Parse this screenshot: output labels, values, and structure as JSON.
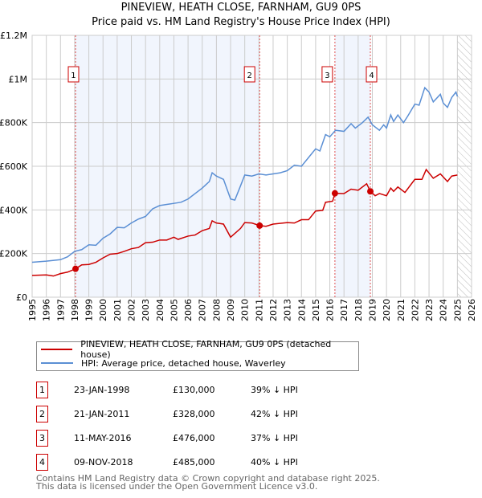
{
  "chart_data": {
    "type": "line",
    "title": "PINEVIEW, HEATH CLOSE, FARNHAM, GU9 0PS",
    "subtitle": "Price paid vs. HM Land Registry's House Price Index (HPI)",
    "xlim": [
      1995,
      2026
    ],
    "ylim": [
      0,
      1200000
    ],
    "x_ticks": [
      "1995",
      "1996",
      "1997",
      "1998",
      "1999",
      "2000",
      "2001",
      "2002",
      "2003",
      "2004",
      "2005",
      "2006",
      "2007",
      "2008",
      "2009",
      "2010",
      "2011",
      "2012",
      "2013",
      "2014",
      "2015",
      "2016",
      "2017",
      "2018",
      "2019",
      "2020",
      "2021",
      "2022",
      "2023",
      "2024",
      "2025",
      "2026"
    ],
    "y_ticks": [
      {
        "v": 0,
        "label": "£0"
      },
      {
        "v": 200000,
        "label": "£200K"
      },
      {
        "v": 400000,
        "label": "£400K"
      },
      {
        "v": 600000,
        "label": "£600K"
      },
      {
        "v": 800000,
        "label": "£800K"
      },
      {
        "v": 1000000,
        "label": "£1M"
      },
      {
        "v": 1200000,
        "label": "£1.2M"
      }
    ],
    "grid": true,
    "shaded_ranges": [
      [
        1998.06,
        2011.05
      ],
      [
        2016.36,
        2018.86
      ]
    ],
    "hatched_from": 2025.0,
    "series": [
      {
        "name": "PINEVIEW, HEATH CLOSE, FARNHAM, GU9 0PS (detached house)",
        "color": "#cc0000",
        "x": [
          1995,
          1996,
          1996.5,
          1997,
          1997.5,
          1998.06,
          1998.5,
          1999,
          1999.5,
          2000,
          2000.5,
          2001,
          2001.5,
          2002,
          2002.5,
          2003,
          2003.5,
          2004,
          2004.5,
          2005,
          2005.3,
          2006,
          2006.5,
          2007,
          2007.5,
          2007.7,
          2008,
          2008.5,
          2009,
          2009.7,
          2010,
          2010.5,
          2011.05,
          2011.5,
          2012,
          2013,
          2013.5,
          2014,
          2014.5,
          2015,
          2015.5,
          2015.7,
          2016.2,
          2016.36,
          2017,
          2017.5,
          2018,
          2018.6,
          2018.86,
          2019.2,
          2019.5,
          2020,
          2020.3,
          2020.5,
          2020.8,
          2021.3,
          2022,
          2022.5,
          2022.8,
          2023.3,
          2023.8,
          2024.3,
          2024.6,
          2025
        ],
        "y": [
          100000,
          102000,
          97000,
          108000,
          115000,
          130000,
          148000,
          150000,
          160000,
          180000,
          197000,
          200000,
          210000,
          222000,
          228000,
          250000,
          252000,
          262000,
          262000,
          275000,
          265000,
          280000,
          285000,
          305000,
          315000,
          350000,
          340000,
          335000,
          275000,
          315000,
          342000,
          340000,
          328000,
          325000,
          335000,
          342000,
          340000,
          355000,
          355000,
          395000,
          398000,
          435000,
          440000,
          476000,
          475000,
          495000,
          490000,
          520000,
          485000,
          465000,
          475000,
          465000,
          500000,
          485000,
          505000,
          480000,
          540000,
          540000,
          585000,
          545000,
          565000,
          530000,
          555000,
          560000
        ]
      },
      {
        "name": "HPI: Average price, detached house, Waverley",
        "color": "#5b8fd4",
        "x": [
          1995,
          1996,
          1997,
          1997.5,
          1998,
          1998.5,
          1999,
          1999.5,
          2000,
          2000.5,
          2001,
          2001.5,
          2002,
          2002.5,
          2003,
          2003.5,
          2004,
          2004.5,
          2005,
          2005.5,
          2006,
          2006.5,
          2007,
          2007.5,
          2007.7,
          2008,
          2008.5,
          2009,
          2009.3,
          2009.7,
          2010,
          2010.5,
          2011,
          2011.5,
          2012,
          2012.5,
          2013,
          2013.5,
          2014,
          2014.5,
          2015,
          2015.3,
          2015.7,
          2016,
          2016.4,
          2017,
          2017.5,
          2017.8,
          2018.3,
          2018.7,
          2019,
          2019.5,
          2019.8,
          2020,
          2020.3,
          2020.5,
          2020.8,
          2021.2,
          2021.5,
          2022,
          2022.3,
          2022.7,
          2023,
          2023.3,
          2023.8,
          2024,
          2024.3,
          2024.6,
          2024.9,
          2025
        ],
        "y": [
          160000,
          165000,
          172000,
          185000,
          210000,
          218000,
          240000,
          238000,
          270000,
          290000,
          320000,
          318000,
          340000,
          358000,
          370000,
          405000,
          420000,
          425000,
          430000,
          435000,
          450000,
          475000,
          500000,
          530000,
          570000,
          555000,
          540000,
          450000,
          445000,
          510000,
          560000,
          555000,
          565000,
          560000,
          565000,
          570000,
          580000,
          605000,
          600000,
          640000,
          680000,
          670000,
          745000,
          735000,
          765000,
          760000,
          795000,
          775000,
          800000,
          825000,
          790000,
          765000,
          790000,
          775000,
          835000,
          805000,
          835000,
          800000,
          830000,
          885000,
          880000,
          960000,
          940000,
          895000,
          930000,
          890000,
          870000,
          915000,
          940000,
          920000
        ]
      }
    ],
    "sales": [
      {
        "id": "1",
        "x": 1998.06,
        "price": 130000,
        "date": "23-JAN-1998",
        "price_label": "£130,000",
        "hpi": "39% ↓ HPI"
      },
      {
        "id": "2",
        "x": 2011.05,
        "price": 328000,
        "date": "21-JAN-2011",
        "price_label": "£328,000",
        "hpi": "42% ↓ HPI"
      },
      {
        "id": "3",
        "x": 2016.36,
        "price": 476000,
        "date": "11-MAY-2016",
        "price_label": "£476,000",
        "hpi": "37% ↓ HPI"
      },
      {
        "id": "4",
        "x": 2018.86,
        "price": 485000,
        "date": "09-NOV-2018",
        "price_label": "£485,000",
        "hpi": "40% ↓ HPI"
      }
    ]
  },
  "footer": {
    "line1": "Contains HM Land Registry data © Crown copyright and database right 2025.",
    "line2": "This data is licensed under the Open Government Licence v3.0."
  }
}
